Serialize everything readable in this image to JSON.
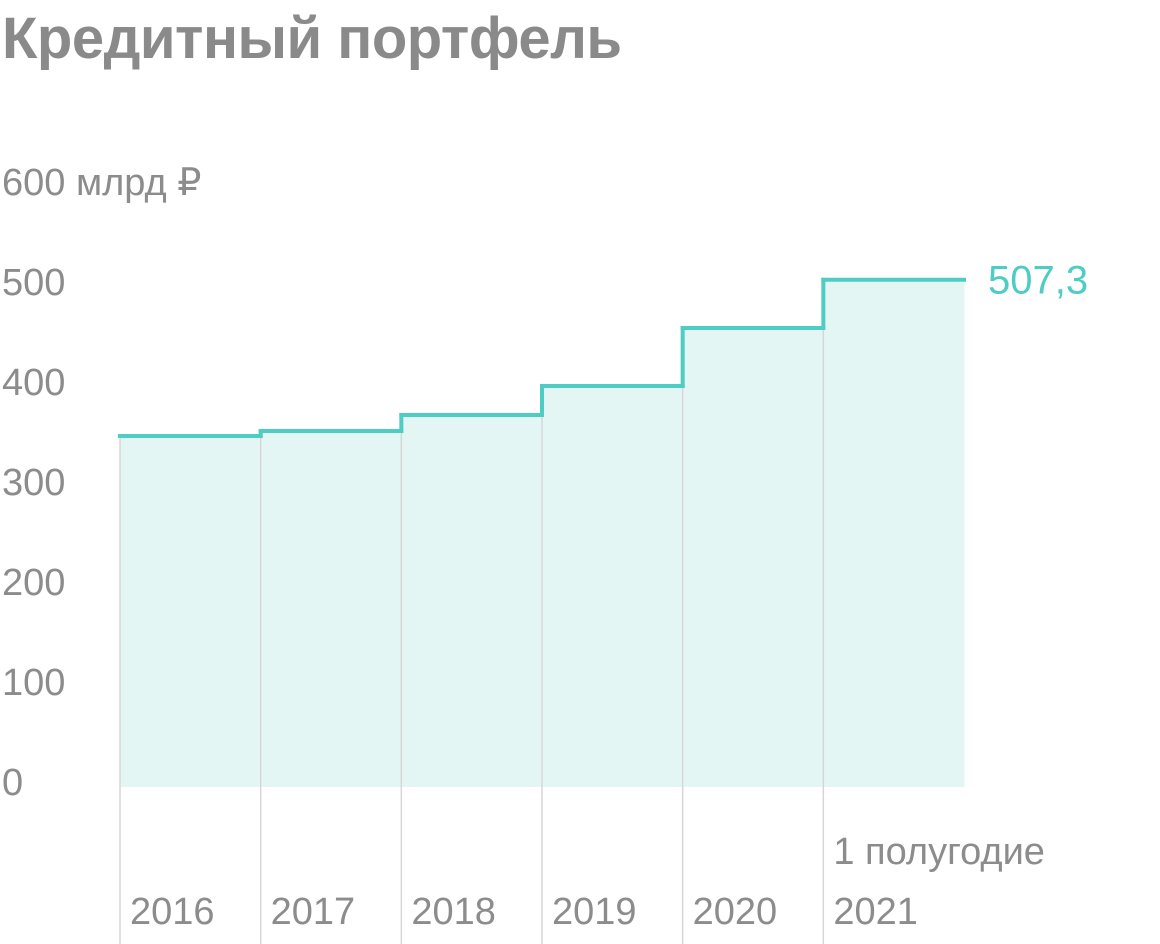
{
  "title": "Кредитный портфель",
  "colors": {
    "line": "#4ecdc4",
    "fill": "#e3f6f4",
    "divider": "#d6d6d6",
    "text": "#8c8c8c",
    "title": "#8a8a8a"
  },
  "chart_data": {
    "type": "area",
    "title": "Кредитный портфель",
    "unit_label": "млрд ₽",
    "categories": [
      "2016",
      "2017",
      "2018",
      "2019",
      "2020",
      "2021"
    ],
    "category_notes": [
      "",
      "",
      "",
      "",
      "",
      "1 полугодие"
    ],
    "values": [
      351,
      356,
      372,
      401,
      459,
      507.3
    ],
    "value_label": "507,3",
    "ylim": [
      0,
      600
    ],
    "yticks": [
      0,
      100,
      200,
      300,
      400,
      500,
      600
    ],
    "ytick_labels": [
      "0",
      "100",
      "200",
      "300",
      "400",
      "500",
      "600 млрд ₽"
    ],
    "grid": false,
    "legend": "none"
  }
}
